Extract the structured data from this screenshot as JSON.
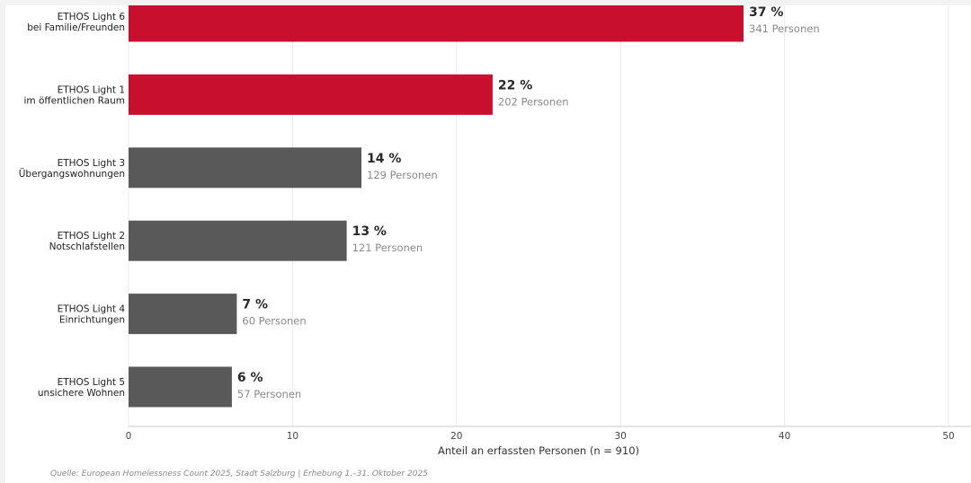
{
  "chart_data": {
    "type": "bar",
    "orientation": "horizontal",
    "categories": [
      [
        "ETHOS Light 6",
        "bei Familie/Freunden"
      ],
      [
        "ETHOS Light 1",
        "im öffentlichen Raum"
      ],
      [
        "ETHOS Light 3",
        "Übergangswohnungen"
      ],
      [
        "ETHOS Light 2",
        "Notschlafstellen"
      ],
      [
        "ETHOS Light 4",
        "Einrichtungen"
      ],
      [
        "ETHOS Light 5",
        "unsichere Wohnen"
      ]
    ],
    "values": [
      37.5,
      22.2,
      14.2,
      13.3,
      6.6,
      6.3
    ],
    "value_labels": [
      "37 %",
      "22 %",
      "14 %",
      "13 %",
      "7 %",
      "6 %"
    ],
    "count_labels": [
      "341 Personen",
      "202 Personen",
      "129 Personen",
      "121 Personen",
      "60 Personen",
      "57 Personen"
    ],
    "highlight": [
      true,
      true,
      false,
      false,
      false,
      false
    ],
    "colors": {
      "highlight": "#c8102e",
      "default": "#595959",
      "grid": "#ebebeb",
      "axis": "#cccccc"
    },
    "xlim": [
      0,
      50
    ],
    "xticks": [
      0,
      10,
      20,
      30,
      40,
      50
    ],
    "xlabel": "Anteil an erfassten Personen (n = 910)",
    "grid": "vertical"
  },
  "source": "Quelle: European Homelessness Count 2025, Stadt Salzburg | Erhebung 1.–31. Oktober 2025"
}
